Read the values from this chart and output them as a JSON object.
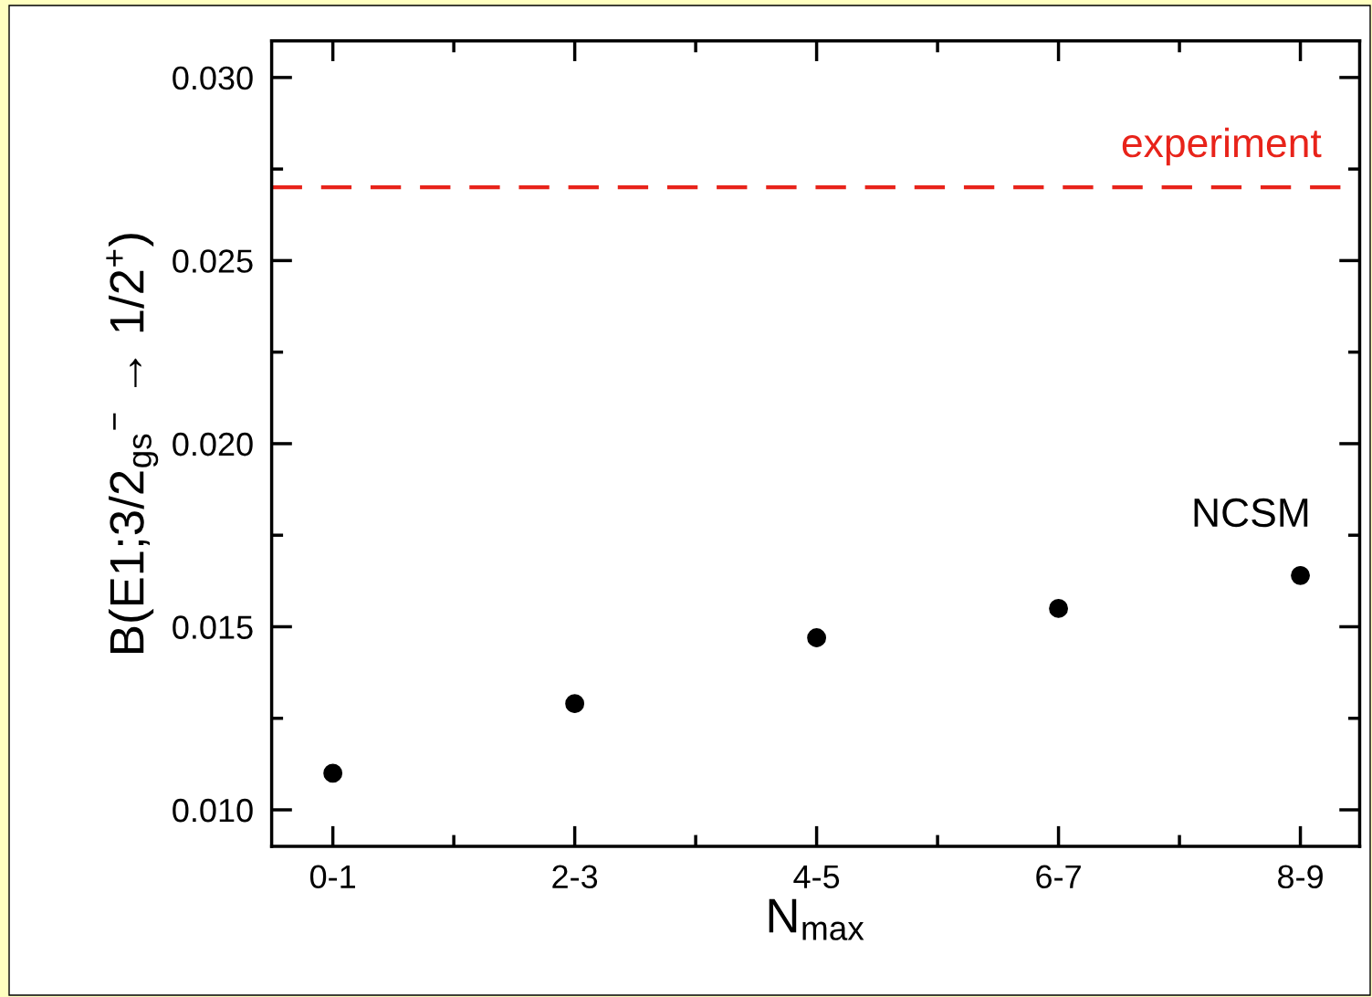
{
  "chart_data": {
    "type": "scatter",
    "xlabel": "N$_{max}$",
    "ylabel": "B(E1;3/2$_{gs}$$^{−}$ → 1/2$^{+}$)",
    "categories": [
      "0-1",
      "2-3",
      "4-5",
      "6-7",
      "8-9"
    ],
    "series": [
      {
        "color": "#000000",
        "values": [
          0.011,
          0.0129,
          0.0147,
          0.0155,
          0.0164
        ]
      }
    ],
    "marker": "circle",
    "ylim": [
      0.009,
      0.031
    ],
    "yticks": [
      {
        "value": 0.01,
        "label": "0.010"
      },
      {
        "value": 0.0125,
        "label": null
      },
      {
        "value": 0.015,
        "label": "0.015"
      },
      {
        "value": 0.0175,
        "label": null
      },
      {
        "value": 0.02,
        "label": "0.020"
      },
      {
        "value": 0.0225,
        "label": null
      },
      {
        "value": 0.025,
        "label": "0.025"
      },
      {
        "value": 0.0275,
        "label": null
      },
      {
        "value": 0.03,
        "label": "0.030"
      }
    ],
    "ref_lines": [
      {
        "axis": "y",
        "value": 0.027,
        "label": "experiment",
        "color": "#e8231a",
        "line_style": "dashed"
      }
    ],
    "annotations": [
      "NCSM"
    ],
    "grid": false,
    "legend": false
  }
}
